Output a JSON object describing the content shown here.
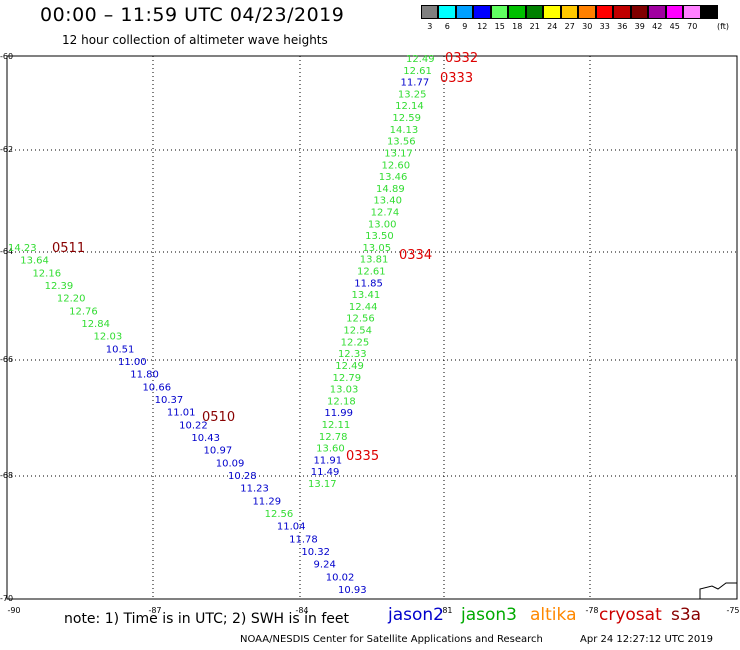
{
  "header": {
    "title": "00:00 – 11:59 UTC 04/23/2019",
    "subtitle": "12 hour collection of altimeter wave heights"
  },
  "scale": {
    "unit": "(ft)",
    "bins": [
      {
        "label": "3",
        "color": "#808080"
      },
      {
        "label": "6",
        "color": "#00ffff"
      },
      {
        "label": "9",
        "color": "#00a0ff"
      },
      {
        "label": "12",
        "color": "#0000ff"
      },
      {
        "label": "15",
        "color": "#60ff60"
      },
      {
        "label": "18",
        "color": "#00c000"
      },
      {
        "label": "21",
        "color": "#008000"
      },
      {
        "label": "24",
        "color": "#ffff00"
      },
      {
        "label": "27",
        "color": "#ffc800"
      },
      {
        "label": "30",
        "color": "#ff8000"
      },
      {
        "label": "33",
        "color": "#ff0000"
      },
      {
        "label": "36",
        "color": "#c00000"
      },
      {
        "label": "39",
        "color": "#800000"
      },
      {
        "label": "42",
        "color": "#a000a0"
      },
      {
        "label": "45",
        "color": "#ff00ff"
      },
      {
        "label": "70",
        "color": "#ff80ff"
      },
      {
        "label": "",
        "color": "#000000"
      }
    ]
  },
  "map": {
    "lon_labels": [
      "-90",
      "-87",
      "-84",
      "-81",
      "-78",
      "-75"
    ],
    "lat_labels": [
      "-60",
      "-62",
      "-64",
      "-66",
      "-68",
      "-70"
    ],
    "colors": {
      "jason2": "#0000cc",
      "green": "#33dd33",
      "time_red": "#dd0000",
      "time_dark": "#880000"
    },
    "passes": [
      {
        "track": "east",
        "time": "0332",
        "time2": "0333",
        "time3": "0334",
        "time4": "0335",
        "values": [
          {
            "v": "12.49",
            "c": "green"
          },
          {
            "v": "12.61",
            "c": "green"
          },
          {
            "v": "11.77",
            "c": "jason2"
          },
          {
            "v": "13.25",
            "c": "green"
          },
          {
            "v": "12.14",
            "c": "green"
          },
          {
            "v": "12.59",
            "c": "green"
          },
          {
            "v": "14.13",
            "c": "green"
          },
          {
            "v": "13.56",
            "c": "green"
          },
          {
            "v": "13.17",
            "c": "green"
          },
          {
            "v": "12.60",
            "c": "green"
          },
          {
            "v": "13.46",
            "c": "green"
          },
          {
            "v": "14.89",
            "c": "green"
          },
          {
            "v": "13.40",
            "c": "green"
          },
          {
            "v": "12.74",
            "c": "green"
          },
          {
            "v": "13.00",
            "c": "green"
          },
          {
            "v": "13.50",
            "c": "green"
          },
          {
            "v": "13.05",
            "c": "green"
          },
          {
            "v": "13.81",
            "c": "green"
          },
          {
            "v": "12.61",
            "c": "green"
          },
          {
            "v": "11.85",
            "c": "jason2"
          },
          {
            "v": "13.41",
            "c": "green"
          },
          {
            "v": "12.44",
            "c": "green"
          },
          {
            "v": "12.56",
            "c": "green"
          },
          {
            "v": "12.54",
            "c": "green"
          },
          {
            "v": "12.25",
            "c": "green"
          },
          {
            "v": "12.33",
            "c": "green"
          },
          {
            "v": "12.49",
            "c": "green"
          },
          {
            "v": "12.79",
            "c": "green"
          },
          {
            "v": "13.03",
            "c": "green"
          },
          {
            "v": "12.18",
            "c": "green"
          },
          {
            "v": "11.99",
            "c": "jason2"
          },
          {
            "v": "12.11",
            "c": "green"
          },
          {
            "v": "12.78",
            "c": "green"
          },
          {
            "v": "13.60",
            "c": "green"
          },
          {
            "v": "11.91",
            "c": "jason2"
          },
          {
            "v": "11.49",
            "c": "jason2"
          },
          {
            "v": "13.17",
            "c": "green"
          }
        ]
      },
      {
        "track": "west",
        "time": "0511",
        "time2": "0510",
        "values": [
          {
            "v": "14.23",
            "c": "green"
          },
          {
            "v": "13.64",
            "c": "green"
          },
          {
            "v": "12.16",
            "c": "green"
          },
          {
            "v": "12.39",
            "c": "green"
          },
          {
            "v": "12.20",
            "c": "green"
          },
          {
            "v": "12.76",
            "c": "green"
          },
          {
            "v": "12.84",
            "c": "green"
          },
          {
            "v": "12.03",
            "c": "green"
          },
          {
            "v": "10.51",
            "c": "jason2"
          },
          {
            "v": "11.00",
            "c": "jason2"
          },
          {
            "v": "11.80",
            "c": "jason2"
          },
          {
            "v": "10.66",
            "c": "jason2"
          },
          {
            "v": "10.37",
            "c": "jason2"
          },
          {
            "v": "11.01",
            "c": "jason2"
          },
          {
            "v": "10.22",
            "c": "jason2"
          },
          {
            "v": "10.43",
            "c": "jason2"
          },
          {
            "v": "10.97",
            "c": "jason2"
          },
          {
            "v": "10.09",
            "c": "jason2"
          },
          {
            "v": "10.28",
            "c": "jason2"
          },
          {
            "v": "11.23",
            "c": "jason2"
          },
          {
            "v": "11.29",
            "c": "jason2"
          },
          {
            "v": "12.56",
            "c": "green"
          },
          {
            "v": "11.04",
            "c": "jason2"
          },
          {
            "v": "11.78",
            "c": "jason2"
          },
          {
            "v": "10.32",
            "c": "jason2"
          },
          {
            "v": "9.24",
            "c": "jason2"
          },
          {
            "v": "10.02",
            "c": "jason2"
          },
          {
            "v": "10.93",
            "c": "jason2"
          }
        ]
      }
    ]
  },
  "footer": {
    "note": "note:  1) Time is in UTC; 2) SWH is in feet",
    "legend": [
      {
        "label": "jason2",
        "color": "#0000cc"
      },
      {
        "label": "jason3",
        "color": "#00aa00"
      },
      {
        "label": "altika",
        "color": "#ff8800"
      },
      {
        "label": "cryosat",
        "color": "#cc0000"
      },
      {
        "label": "s3a",
        "color": "#880000"
      }
    ],
    "credit": "NOAA/NESDIS Center for Satellite Applications and Research",
    "timestamp": "Apr 24 12:27:12 UTC 2019"
  }
}
